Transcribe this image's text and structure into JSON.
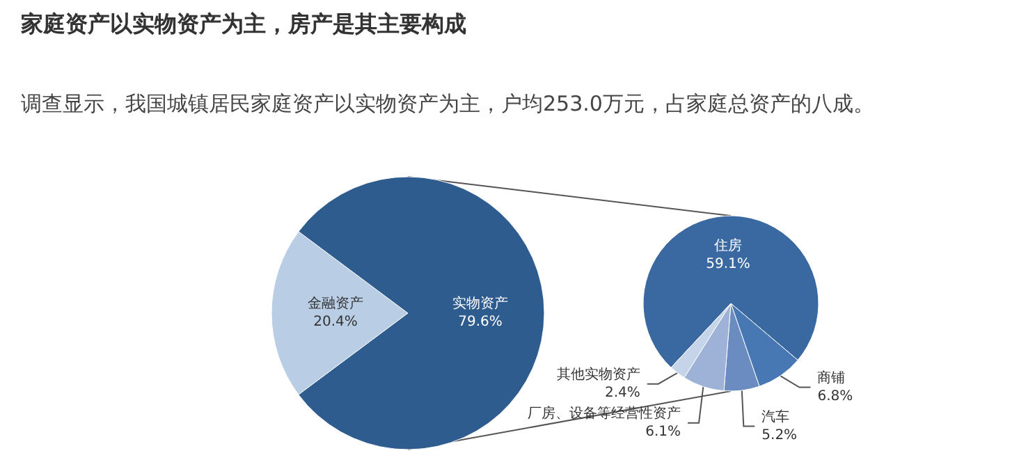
{
  "chart_data": [
    {
      "type": "pie",
      "title": "家庭资产以实物资产为主，房产是其主要构成",
      "subtitle": "调查显示，我国城镇居民家庭资产以实物资产为主，户均253.0万元，占家庭总资产的八成。",
      "categories": [
        "金融资产",
        "实物资产"
      ],
      "values": [
        20.4,
        79.6
      ],
      "colors": [
        "#b9cde5",
        "#2f5c8f"
      ],
      "value_labels": [
        "20.4%",
        "79.6%"
      ]
    },
    {
      "type": "pie",
      "categories": [
        "住房",
        "商铺",
        "汽车",
        "厂房、设备等经营性资产",
        "其他实物资产"
      ],
      "values": [
        59.1,
        6.8,
        5.2,
        6.1,
        2.4
      ],
      "colors": [
        "#3a69a1",
        "#4878b3",
        "#6a8cc0",
        "#9db2d6",
        "#c6d4e9"
      ],
      "value_labels": [
        "59.1%",
        "6.8%",
        "5.2%",
        "6.1%",
        "2.4%"
      ]
    }
  ]
}
